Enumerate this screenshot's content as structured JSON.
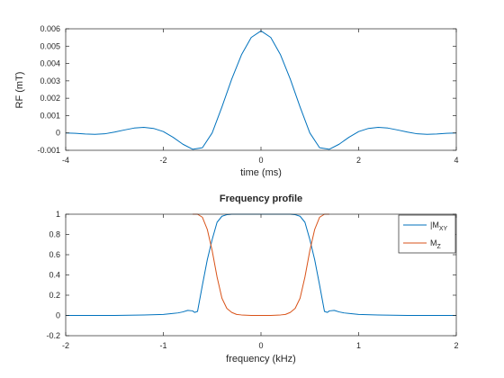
{
  "colors": {
    "series1": "#0072BD",
    "series2": "#D95319",
    "axis": "#262626",
    "bg": "#ffffff"
  },
  "chart_data": [
    {
      "id": "rf",
      "type": "line",
      "title": "",
      "xlabel": "time (ms)",
      "ylabel": "RF (mT)",
      "xlim": [
        -4,
        4
      ],
      "ylim": [
        -0.001,
        0.006
      ],
      "xticks": [
        -4,
        -2,
        0,
        2,
        4
      ],
      "xtick_labels": [
        "-4",
        "-2",
        "0",
        "2",
        "4"
      ],
      "yticks": [
        -0.001,
        0,
        0.001,
        0.002,
        0.003,
        0.004,
        0.005,
        0.006
      ],
      "ytick_labels": [
        "-0.001",
        "0",
        "0.001",
        "0.002",
        "0.003",
        "0.004",
        "0.005",
        "0.006"
      ],
      "grid": false,
      "series": [
        {
          "name": "RF",
          "color": "#0072BD",
          "x": [
            -4,
            -3.8,
            -3.6,
            -3.4,
            -3.2,
            -3.0,
            -2.8,
            -2.6,
            -2.4,
            -2.2,
            -2.0,
            -1.8,
            -1.6,
            -1.4,
            -1.2,
            -1.0,
            -0.8,
            -0.6,
            -0.4,
            -0.2,
            0,
            0.2,
            0.4,
            0.6,
            0.8,
            1.0,
            1.2,
            1.4,
            1.6,
            1.8,
            2.0,
            2.2,
            2.4,
            2.6,
            2.8,
            3.0,
            3.2,
            3.4,
            3.6,
            3.8,
            4
          ],
          "y": [
            0,
            -2e-05,
            -6e-05,
            -8e-05,
            -5e-05,
            5e-05,
            0.00017,
            0.00028,
            0.00032,
            0.00026,
            8e-05,
            -0.00025,
            -0.00065,
            -0.00094,
            -0.00085,
            0.0,
            0.0015,
            0.0031,
            0.0045,
            0.0055,
            0.00588,
            0.0055,
            0.0045,
            0.0031,
            0.0015,
            0.0,
            -0.00085,
            -0.00094,
            -0.00065,
            -0.00025,
            8e-05,
            0.00026,
            0.00032,
            0.00028,
            0.00017,
            5e-05,
            -5e-05,
            -8e-05,
            -6e-05,
            -2e-05,
            0
          ]
        }
      ]
    },
    {
      "id": "freq",
      "type": "line",
      "title": "Frequency profile",
      "xlabel": "frequency (kHz)",
      "ylabel": "",
      "xlim": [
        -2,
        2
      ],
      "ylim": [
        -0.2,
        1
      ],
      "xticks": [
        -2,
        -1,
        0,
        1,
        2
      ],
      "xtick_labels": [
        "-2",
        "-1",
        "0",
        "1",
        "2"
      ],
      "yticks": [
        -0.2,
        0,
        0.2,
        0.4,
        0.6,
        0.8,
        1
      ],
      "ytick_labels": [
        "-0.2",
        "0",
        "0.2",
        "0.4",
        "0.6",
        "0.8",
        "1"
      ],
      "grid": false,
      "legend": {
        "placement": "top-right",
        "entries": [
          {
            "label": "|M",
            "sub": "XY"
          },
          {
            "label": "M",
            "sub": "Z"
          }
        ]
      },
      "series": [
        {
          "name": "|MXY|",
          "color": "#0072BD",
          "x": [
            -2.0,
            -1.5,
            -1.2,
            -1.0,
            -0.9,
            -0.85,
            -0.8,
            -0.75,
            -0.7,
            -0.68,
            -0.65,
            -0.6,
            -0.55,
            -0.5,
            -0.45,
            -0.4,
            -0.35,
            -0.3,
            -0.2,
            0,
            0.2,
            0.3,
            0.35,
            0.4,
            0.45,
            0.5,
            0.55,
            0.6,
            0.65,
            0.68,
            0.7,
            0.75,
            0.8,
            0.85,
            0.9,
            1.0,
            1.2,
            1.5,
            2.0
          ],
          "y": [
            0,
            0,
            0.005,
            0.01,
            0.02,
            0.025,
            0.035,
            0.05,
            0.045,
            0.03,
            0.04,
            0.3,
            0.55,
            0.75,
            0.92,
            0.98,
            0.995,
            1,
            1,
            1,
            1,
            1,
            0.995,
            0.98,
            0.92,
            0.75,
            0.55,
            0.3,
            0.04,
            0.03,
            0.045,
            0.05,
            0.035,
            0.025,
            0.02,
            0.01,
            0.005,
            0,
            0
          ]
        },
        {
          "name": "MZ",
          "color": "#D95319",
          "x": [
            -0.7,
            -0.65,
            -0.6,
            -0.55,
            -0.5,
            -0.45,
            -0.4,
            -0.35,
            -0.3,
            -0.25,
            -0.2,
            -0.1,
            0,
            0.1,
            0.2,
            0.25,
            0.3,
            0.35,
            0.4,
            0.45,
            0.5,
            0.55,
            0.6,
            0.65,
            0.7
          ],
          "y": [
            1,
            1,
            0.97,
            0.85,
            0.64,
            0.38,
            0.17,
            0.07,
            0.03,
            0.01,
            0.005,
            0,
            0,
            0,
            0.005,
            0.01,
            0.03,
            0.07,
            0.17,
            0.38,
            0.64,
            0.85,
            0.97,
            1,
            1
          ]
        }
      ]
    }
  ]
}
